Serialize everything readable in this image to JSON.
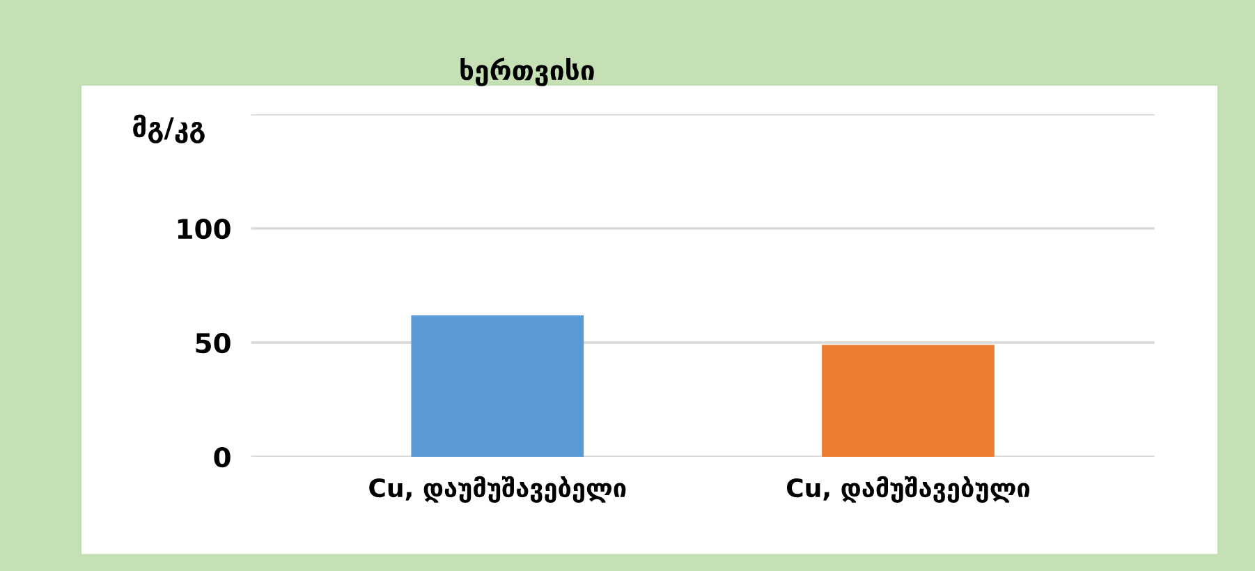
{
  "chart_data": {
    "type": "bar",
    "title": "ხერთვისი",
    "ylabel": "მგ/კგ",
    "categories": [
      "Cu, დაუმუშავებელი",
      "Cu, დამუშავებული"
    ],
    "values": [
      62,
      49
    ],
    "colors": [
      "#5b9bd5",
      "#ed7d31"
    ],
    "ylim": [
      0,
      150
    ],
    "yticks": [
      0,
      50,
      100,
      {
        "value": 150,
        "label": null
      }
    ],
    "grid": "y",
    "legend": false
  }
}
